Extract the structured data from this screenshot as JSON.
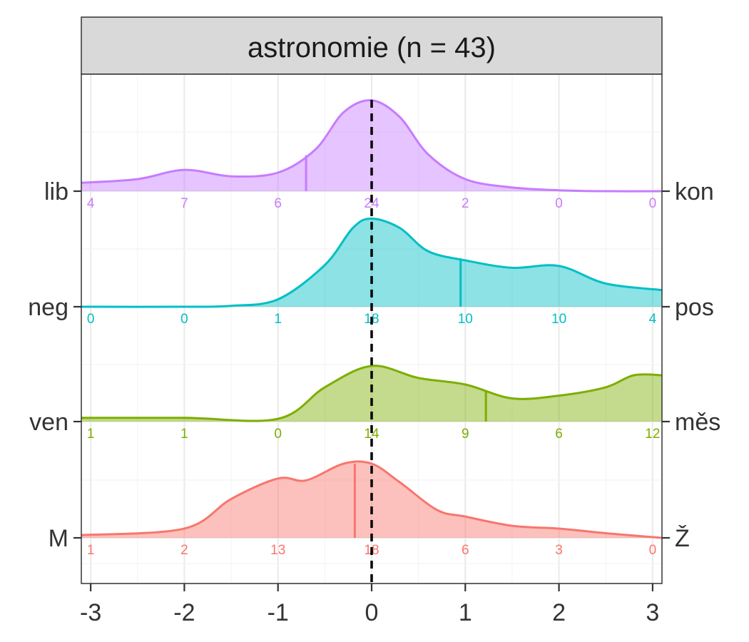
{
  "chart_data": {
    "type": "area",
    "title": "astronomie (n = 43)",
    "xlabel": "",
    "ylabel": "",
    "xlim": [
      -3.1,
      3.1
    ],
    "x_ticks": [
      "-3",
      "-2",
      "-1",
      "0",
      "1",
      "2",
      "3"
    ],
    "grid": true,
    "reference_line_x": 0,
    "count_positions_x": [
      -3,
      -2,
      -1,
      0,
      1,
      2,
      3
    ],
    "series": [
      {
        "left_label": "lib",
        "right_label": "kon",
        "color": "#C77CFF",
        "mean": -0.7,
        "counts": [
          "4",
          "7",
          "6",
          "24",
          "2",
          "0",
          "0"
        ],
        "density": {
          "x": [
            -3.1,
            -2.5,
            -2.0,
            -1.5,
            -1.0,
            -0.6,
            -0.3,
            0.0,
            0.3,
            0.6,
            1.0,
            1.5,
            2.0,
            2.5,
            3.1
          ],
          "y": [
            0.09,
            0.13,
            0.23,
            0.16,
            0.2,
            0.45,
            0.85,
            0.98,
            0.8,
            0.4,
            0.13,
            0.04,
            0.01,
            0.0,
            0.0
          ]
        }
      },
      {
        "left_label": "neg",
        "right_label": "pos",
        "color": "#00BFC4",
        "mean": 0.95,
        "counts": [
          "0",
          "0",
          "1",
          "18",
          "10",
          "10",
          "4"
        ],
        "density": {
          "x": [
            -3.1,
            -2.0,
            -1.5,
            -1.0,
            -0.5,
            -0.2,
            0.0,
            0.3,
            0.6,
            1.0,
            1.5,
            2.0,
            2.5,
            3.1
          ],
          "y": [
            0.0,
            0.0,
            0.01,
            0.08,
            0.45,
            0.85,
            0.95,
            0.85,
            0.6,
            0.5,
            0.42,
            0.44,
            0.25,
            0.18
          ]
        }
      },
      {
        "left_label": "ven",
        "right_label": "měs",
        "color": "#7CAE00",
        "mean": 1.22,
        "counts": [
          "1",
          "1",
          "0",
          "14",
          "9",
          "6",
          "12"
        ],
        "density": {
          "x": [
            -3.1,
            -2.0,
            -1.0,
            -0.5,
            0.0,
            0.5,
            1.0,
            1.5,
            2.0,
            2.5,
            2.8,
            3.1
          ],
          "y": [
            0.04,
            0.04,
            0.03,
            0.37,
            0.6,
            0.47,
            0.4,
            0.25,
            0.28,
            0.37,
            0.5,
            0.5
          ]
        }
      },
      {
        "left_label": "M",
        "right_label": "Ž",
        "color": "#F8766D",
        "mean": -0.18,
        "counts": [
          "1",
          "2",
          "13",
          "18",
          "6",
          "3",
          "0"
        ],
        "density": {
          "x": [
            -3.1,
            -2.0,
            -1.5,
            -1.0,
            -0.7,
            -0.3,
            0.0,
            0.3,
            0.7,
            1.0,
            1.5,
            2.0,
            2.5,
            3.1
          ],
          "y": [
            0.03,
            0.1,
            0.42,
            0.64,
            0.62,
            0.8,
            0.8,
            0.6,
            0.3,
            0.23,
            0.13,
            0.1,
            0.05,
            0.0
          ]
        }
      }
    ]
  }
}
